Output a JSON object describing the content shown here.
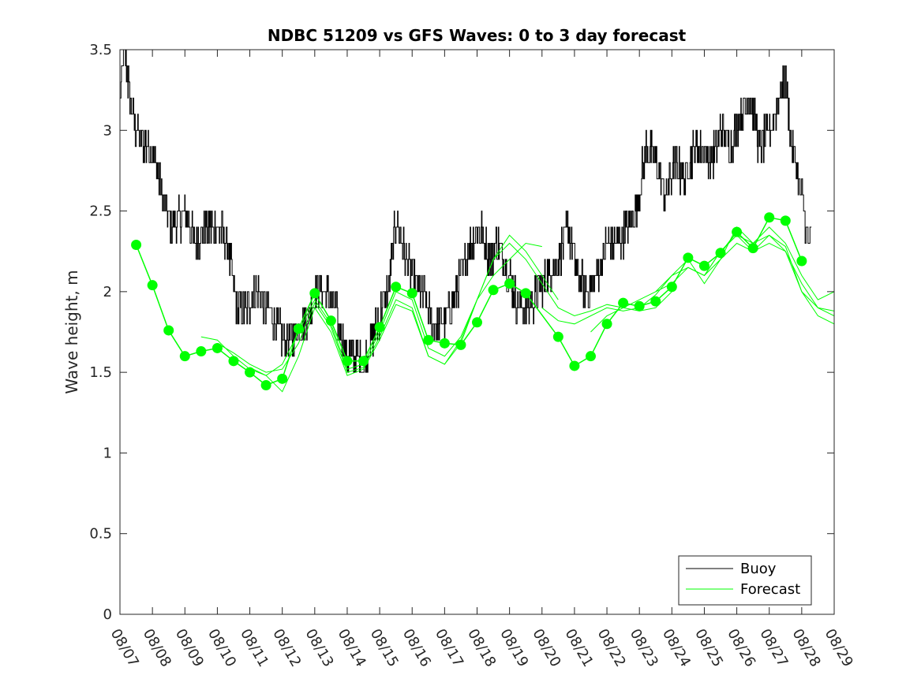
{
  "chart_data": {
    "type": "line",
    "title": "NDBC 51209 vs GFS Waves: 0 to 3 day forecast",
    "xlabel": "",
    "ylabel": "Wave height, m",
    "xlim": [
      0,
      22
    ],
    "ylim": [
      0,
      3.5
    ],
    "yticks": [
      0,
      0.5,
      1,
      1.5,
      2,
      2.5,
      3,
      3.5
    ],
    "ytick_labels": [
      "0",
      "0.5",
      "1",
      "1.5",
      "2",
      "2.5",
      "3",
      "3.5"
    ],
    "xtick_labels": [
      "08/07",
      "08/08",
      "08/09",
      "08/10",
      "08/11",
      "08/12",
      "08/13",
      "08/14",
      "08/15",
      "08/16",
      "08/17",
      "08/18",
      "08/19",
      "08/20",
      "08/21",
      "08/22",
      "08/23",
      "08/24",
      "08/25",
      "08/26",
      "08/27",
      "08/28",
      "08/29"
    ],
    "legend": {
      "position": "bottom-right",
      "entries": [
        "Buoy",
        "Forecast"
      ]
    },
    "colors": {
      "buoy": "#000000",
      "forecast": "#00ff00",
      "axis": "#262626"
    },
    "buoy_key_points": {
      "x": [
        0,
        0.05,
        0.1,
        0.2,
        0.3,
        0.5,
        0.8,
        1.0,
        1.3,
        1.6,
        2.0,
        2.3,
        2.7,
        3.0,
        3.3,
        3.6,
        3.9,
        4.2,
        4.5,
        4.8,
        5.0,
        5.3,
        5.6,
        5.9,
        6.1,
        6.3,
        6.6,
        7.0,
        7.3,
        7.5,
        7.8,
        8.0,
        8.3,
        8.5,
        8.8,
        9.1,
        9.4,
        9.6,
        9.9,
        10.2,
        10.5,
        10.8,
        11.1,
        11.4,
        11.6,
        11.9,
        12.2,
        12.5,
        12.8,
        13.0,
        13.2,
        13.5,
        13.8,
        14.1,
        14.4,
        14.7,
        15.0,
        15.3,
        15.6,
        15.9,
        16.2,
        16.5,
        16.8,
        17.1,
        17.4,
        17.7,
        17.9,
        18.2,
        18.5,
        18.8,
        19.1,
        19.4,
        19.7,
        20.0,
        20.3,
        20.5,
        20.7,
        20.9,
        21.0,
        21.2,
        21.3
      ],
      "y": [
        3.2,
        3.3,
        3.5,
        3.4,
        3.2,
        3.0,
        2.9,
        2.9,
        2.6,
        2.4,
        2.5,
        2.3,
        2.4,
        2.4,
        2.3,
        1.9,
        1.9,
        2.0,
        1.9,
        1.8,
        1.7,
        1.7,
        1.8,
        1.9,
        2.05,
        2.0,
        1.9,
        1.6,
        1.6,
        1.55,
        1.75,
        1.85,
        2.05,
        2.45,
        2.2,
        2.05,
        1.95,
        1.8,
        1.8,
        1.9,
        2.1,
        2.3,
        2.4,
        2.2,
        2.3,
        2.15,
        1.95,
        1.9,
        1.95,
        2.05,
        2.1,
        2.2,
        2.4,
        2.1,
        2.0,
        2.1,
        2.3,
        2.3,
        2.4,
        2.5,
        2.9,
        2.8,
        2.6,
        2.8,
        2.7,
        2.9,
        2.9,
        2.8,
        3.0,
        2.9,
        3.1,
        3.2,
        2.9,
        3.0,
        3.2,
        3.3,
        2.9,
        2.7,
        2.6,
        2.3,
        2.3
      ]
    },
    "buoy_noise_amplitude": 0.12,
    "forecast_points": {
      "x": [
        0.5,
        1.0,
        1.5,
        2.0,
        2.5,
        3.0,
        3.5,
        4.0,
        4.5,
        5.0,
        5.5,
        6.0,
        6.5,
        7.0,
        7.5,
        8.0,
        8.5,
        9.0,
        9.5,
        10.0,
        10.5,
        11.0,
        11.5,
        12.0,
        12.5,
        13.5,
        14.0,
        14.5,
        15.0,
        15.5,
        16.0,
        16.5,
        17.0,
        17.5,
        18.0,
        18.5,
        19.0,
        19.5,
        20.0,
        20.5,
        21.0
      ],
      "y": [
        2.29,
        2.04,
        1.76,
        1.6,
        1.63,
        1.65,
        1.57,
        1.5,
        1.42,
        1.46,
        1.77,
        1.99,
        1.82,
        1.57,
        1.57,
        1.78,
        2.03,
        1.99,
        1.7,
        1.68,
        1.67,
        1.81,
        2.01,
        2.05,
        1.99,
        1.72,
        1.54,
        1.6,
        1.8,
        1.93,
        1.91,
        1.94,
        2.03,
        2.21,
        2.16,
        2.24,
        2.37,
        2.27,
        2.46,
        2.44,
        2.19
      ]
    },
    "forecast_runs": [
      {
        "x": [
          2.5,
          3.0,
          3.5,
          4.0,
          4.5,
          5.0,
          5.5,
          6.0,
          6.5,
          7.0,
          7.5,
          8.0,
          8.5,
          9.0,
          9.5,
          10.0,
          10.5,
          11.0,
          11.5,
          12.0,
          12.5,
          13.0
        ],
        "y": [
          1.72,
          1.7,
          1.6,
          1.52,
          1.48,
          1.55,
          1.75,
          1.95,
          1.8,
          1.52,
          1.55,
          1.75,
          2.0,
          1.95,
          1.65,
          1.6,
          1.72,
          1.95,
          2.1,
          2.2,
          2.3,
          2.28
        ]
      },
      {
        "x": [
          3.0,
          3.5,
          4.0,
          4.5,
          5.0,
          5.5,
          6.0,
          6.5,
          7.0,
          7.5,
          8.0,
          8.5,
          9.0,
          9.5,
          10.0,
          10.5,
          11.0,
          11.5,
          12.0,
          12.5,
          13.0,
          13.5
        ],
        "y": [
          1.68,
          1.62,
          1.55,
          1.5,
          1.52,
          1.68,
          1.93,
          1.78,
          1.5,
          1.53,
          1.72,
          1.95,
          1.9,
          1.6,
          1.55,
          1.7,
          1.95,
          2.2,
          2.35,
          2.25,
          2.1,
          1.95
        ]
      },
      {
        "x": [
          4.0,
          4.5,
          5.0,
          5.5,
          6.0,
          6.5,
          7.0,
          7.5,
          8.0,
          8.5,
          9.0,
          9.5,
          10.0,
          10.5,
          11.0,
          11.5,
          12.0,
          12.5,
          13.0,
          13.5,
          14.0,
          14.5,
          15.0,
          15.5,
          16.0,
          16.5,
          17.0
        ],
        "y": [
          1.53,
          1.48,
          1.38,
          1.6,
          1.9,
          1.75,
          1.48,
          1.52,
          1.7,
          1.92,
          1.88,
          1.6,
          1.55,
          1.68,
          1.95,
          2.2,
          2.3,
          2.2,
          2.05,
          1.9,
          1.85,
          1.88,
          1.92,
          1.9,
          1.88,
          1.9,
          2.0
        ]
      },
      {
        "x": [
          13.0,
          13.5,
          14.0,
          14.5,
          15.0,
          15.5,
          16.0,
          16.5,
          17.0,
          17.5,
          18.0,
          18.5,
          19.0,
          19.5,
          20.0,
          20.5,
          21.0,
          21.5,
          22.0
        ],
        "y": [
          1.9,
          1.82,
          1.8,
          1.85,
          1.9,
          1.88,
          1.9,
          1.98,
          2.1,
          2.15,
          2.1,
          2.2,
          2.3,
          2.25,
          2.3,
          2.25,
          2.05,
          1.9,
          1.85
        ]
      },
      {
        "x": [
          14.5,
          15.0,
          15.5,
          16.0,
          16.5,
          17.0,
          17.5,
          18.0,
          18.5,
          19.0,
          19.5,
          20.0,
          20.5,
          21.0,
          21.5,
          22.0
        ],
        "y": [
          1.75,
          1.85,
          1.9,
          1.95,
          2.0,
          2.05,
          2.15,
          2.1,
          2.25,
          2.35,
          2.3,
          2.35,
          2.25,
          2.0,
          1.9,
          1.88
        ]
      },
      {
        "x": [
          16.5,
          17.0,
          17.5,
          18.0,
          18.5,
          19.0,
          19.5,
          20.0,
          20.5,
          21.0,
          21.5,
          22.0
        ],
        "y": [
          2.0,
          2.1,
          2.2,
          2.05,
          2.2,
          2.4,
          2.3,
          2.4,
          2.3,
          2.1,
          1.95,
          2.0
        ]
      },
      {
        "x": [
          17.5,
          18.0,
          18.5,
          19.0,
          19.5,
          20.0,
          20.5,
          21.0,
          21.5,
          22.0
        ],
        "y": [
          2.15,
          2.1,
          2.25,
          2.35,
          2.25,
          2.35,
          2.28,
          2.0,
          1.85,
          1.8
        ]
      }
    ]
  }
}
